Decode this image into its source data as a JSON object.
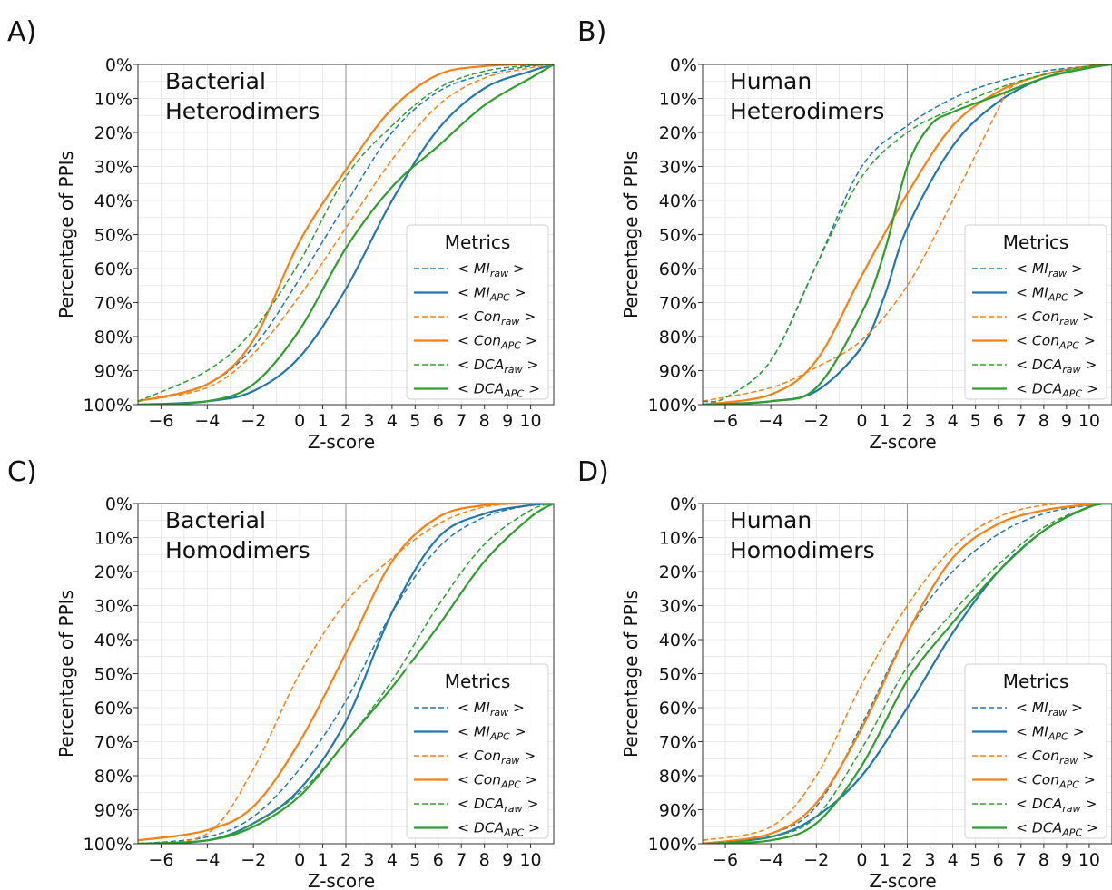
{
  "colors": {
    "blue": "#1f77b4",
    "orange": "#ff7f0e",
    "green": "#2ca02c"
  },
  "legend": {
    "title": "Metrics",
    "entries": [
      {
        "base": "MI",
        "sub": "raw",
        "color": "blue",
        "style": "dashed"
      },
      {
        "base": "MI",
        "sub": "APC",
        "color": "blue",
        "style": "solid"
      },
      {
        "base": "Con",
        "sub": "raw",
        "color": "orange",
        "style": "dashed"
      },
      {
        "base": "Con",
        "sub": "APC",
        "color": "orange",
        "style": "solid"
      },
      {
        "base": "DCA",
        "sub": "raw",
        "color": "green",
        "style": "dashed"
      },
      {
        "base": "DCA",
        "sub": "APC",
        "color": "green",
        "style": "solid"
      }
    ]
  },
  "chart_data": [
    {
      "type": "line",
      "panel": "A)",
      "title_lines": [
        "Bacterial",
        "Heterodimers"
      ],
      "xlabel": "Z-score",
      "ylabel": "Percentage of PPIs",
      "xlim": [
        -7,
        11
      ],
      "ylim": [
        0,
        100
      ],
      "y_inverted": true,
      "x_ticks": [
        -6,
        -4,
        -2,
        0,
        1,
        2,
        3,
        4,
        5,
        6,
        7,
        8,
        9,
        10
      ],
      "y_ticks": [
        "0%",
        "10%",
        "20%",
        "30%",
        "40%",
        "50%",
        "60%",
        "70%",
        "80%",
        "90%",
        "100%"
      ],
      "reference_line_x": 2,
      "grid": true,
      "legend_position": "lower right",
      "series": [
        {
          "name": "<MI_raw>",
          "color": "blue",
          "style": "dashed",
          "x": [
            -7,
            -4,
            -2,
            0,
            2,
            4,
            6,
            8,
            10,
            11
          ],
          "y": [
            99,
            94,
            83,
            63,
            41,
            20,
            8,
            3,
            0.5,
            0
          ]
        },
        {
          "name": "<MI_APC>",
          "color": "blue",
          "style": "solid",
          "x": [
            -7,
            -4,
            -2,
            0,
            2,
            4,
            6,
            8,
            10,
            11
          ],
          "y": [
            100,
            99,
            96,
            86,
            66,
            40,
            19,
            7,
            2,
            0
          ]
        },
        {
          "name": "<Con_raw>",
          "color": "orange",
          "style": "dashed",
          "x": [
            -7,
            -4,
            -2,
            0,
            2,
            4,
            6,
            8,
            10,
            11
          ],
          "y": [
            99,
            95,
            85,
            68,
            48,
            28,
            12,
            4,
            1,
            0
          ]
        },
        {
          "name": "<Con_APC>",
          "color": "orange",
          "style": "solid",
          "x": [
            -7,
            -4,
            -2,
            0,
            2,
            4,
            6,
            8,
            10,
            11
          ],
          "y": [
            99,
            94,
            81,
            52,
            31,
            13,
            3,
            0.5,
            0,
            0
          ]
        },
        {
          "name": "<DCA_raw>",
          "color": "green",
          "style": "dashed",
          "x": [
            -7,
            -4,
            -2,
            0,
            2,
            4,
            6,
            8,
            10,
            11
          ],
          "y": [
            99,
            90,
            78,
            58,
            33,
            18,
            7,
            2,
            0.3,
            0
          ]
        },
        {
          "name": "<DCA_APC>",
          "color": "green",
          "style": "solid",
          "x": [
            -7,
            -4,
            -2,
            0,
            2,
            4,
            6,
            8,
            10,
            11
          ],
          "y": [
            100,
            99,
            94,
            78,
            54,
            36,
            24,
            12,
            4,
            0
          ]
        }
      ]
    },
    {
      "type": "line",
      "panel": "B)",
      "title_lines": [
        "Human",
        "Heterodimers"
      ],
      "xlabel": "Z-score",
      "ylabel": "Percentage of PPIs",
      "xlim": [
        -7,
        11
      ],
      "ylim": [
        0,
        100
      ],
      "y_inverted": true,
      "x_ticks": [
        -6,
        -4,
        -2,
        0,
        1,
        2,
        3,
        4,
        5,
        6,
        7,
        8,
        9,
        10
      ],
      "y_ticks": [
        "0%",
        "10%",
        "20%",
        "30%",
        "40%",
        "50%",
        "60%",
        "70%",
        "80%",
        "90%",
        "100%"
      ],
      "reference_line_x": 2,
      "grid": true,
      "legend_position": "lower right",
      "series": [
        {
          "name": "<MI_raw>",
          "color": "blue",
          "style": "dashed",
          "x": [
            -7,
            -6,
            -4,
            -2,
            0,
            2,
            4,
            6,
            8,
            10,
            11
          ],
          "y": [
            99,
            98,
            87,
            59,
            30,
            18,
            10,
            5,
            2,
            0.5,
            0
          ]
        },
        {
          "name": "<MI_APC>",
          "color": "blue",
          "style": "solid",
          "x": [
            -7,
            -4,
            -2,
            0,
            1,
            2,
            4,
            6,
            8,
            10,
            11
          ],
          "y": [
            100,
            99,
            96,
            83,
            68,
            48,
            24,
            11,
            4,
            1,
            0
          ]
        },
        {
          "name": "<Con_raw>",
          "color": "orange",
          "style": "dashed",
          "x": [
            -7,
            -4,
            -2,
            0,
            2,
            4,
            6,
            6.5,
            8,
            10,
            11
          ],
          "y": [
            99,
            95,
            89,
            81,
            65,
            40,
            13,
            7,
            3,
            0.5,
            0
          ]
        },
        {
          "name": "<Con_APC>",
          "color": "orange",
          "style": "solid",
          "x": [
            -7,
            -4,
            -2,
            0,
            2,
            4,
            6,
            8,
            10,
            11
          ],
          "y": [
            100,
            97,
            87,
            62,
            38,
            18,
            8,
            3,
            0.5,
            0
          ]
        },
        {
          "name": "<DCA_raw>",
          "color": "green",
          "style": "dashed",
          "x": [
            -7,
            -6,
            -4,
            -2,
            0,
            2,
            4,
            6,
            8,
            10,
            11
          ],
          "y": [
            99,
            98,
            87,
            59,
            33,
            20,
            13,
            7,
            3,
            0.5,
            0
          ]
        },
        {
          "name": "<DCA_APC>",
          "color": "green",
          "style": "solid",
          "x": [
            -7,
            -4,
            -2,
            0,
            1,
            2,
            3,
            4,
            6,
            8,
            10,
            11
          ],
          "y": [
            100,
            99,
            95,
            73,
            55,
            30,
            18,
            14,
            9,
            4,
            1,
            0
          ]
        }
      ]
    },
    {
      "type": "line",
      "panel": "C)",
      "title_lines": [
        "Bacterial",
        "Homodimers"
      ],
      "xlabel": "Z-score",
      "ylabel": "Percentage of PPIs",
      "xlim": [
        -7,
        11
      ],
      "ylim": [
        0,
        100
      ],
      "y_inverted": true,
      "x_ticks": [
        -6,
        -4,
        -2,
        0,
        1,
        2,
        3,
        4,
        5,
        6,
        7,
        8,
        9,
        10
      ],
      "y_ticks": [
        "0%",
        "10%",
        "20%",
        "30%",
        "40%",
        "50%",
        "60%",
        "70%",
        "80%",
        "90%",
        "100%"
      ],
      "reference_line_x": 2,
      "grid": true,
      "legend_position": "lower right",
      "series": [
        {
          "name": "<MI_raw>",
          "color": "blue",
          "style": "dashed",
          "x": [
            -7,
            -4,
            -2,
            0,
            2,
            4,
            6,
            8,
            10,
            11
          ],
          "y": [
            100,
            98,
            92,
            78,
            58,
            32,
            13,
            4,
            0.5,
            0
          ]
        },
        {
          "name": "<MI_APC>",
          "color": "blue",
          "style": "solid",
          "x": [
            -7,
            -4,
            -2,
            0,
            2,
            4,
            6,
            8,
            10,
            11
          ],
          "y": [
            100,
            99,
            94,
            84,
            64,
            32,
            10,
            3,
            0.5,
            0
          ]
        },
        {
          "name": "<Con_raw>",
          "color": "orange",
          "style": "dashed",
          "x": [
            -7,
            -4,
            -2,
            0,
            2,
            4,
            6,
            8,
            10,
            11
          ],
          "y": [
            100,
            97,
            78,
            50,
            29,
            16,
            6,
            1,
            0,
            0
          ]
        },
        {
          "name": "<Con_APC>",
          "color": "orange",
          "style": "solid",
          "x": [
            -7,
            -4,
            -2,
            0,
            2,
            4,
            6,
            8,
            10,
            11
          ],
          "y": [
            99,
            96,
            89,
            70,
            44,
            17,
            4,
            0.5,
            0,
            0
          ]
        },
        {
          "name": "<DCA_raw>",
          "color": "green",
          "style": "dashed",
          "x": [
            -7,
            -4,
            -2,
            0,
            2,
            4,
            6,
            8,
            10,
            11
          ],
          "y": [
            100,
            99,
            94,
            85,
            70,
            52,
            30,
            12,
            2,
            0
          ]
        },
        {
          "name": "<DCA_APC>",
          "color": "green",
          "style": "solid",
          "x": [
            -7,
            -4,
            -2,
            0,
            2,
            4,
            6,
            8,
            10,
            11
          ],
          "y": [
            100,
            99,
            95,
            86,
            70,
            54,
            36,
            17,
            4,
            0
          ]
        }
      ]
    },
    {
      "type": "line",
      "panel": "D)",
      "title_lines": [
        "Human",
        "Homodimers"
      ],
      "xlabel": "Z-score",
      "ylabel": "Percentage of PPIs",
      "xlim": [
        -7,
        11
      ],
      "ylim": [
        0,
        100
      ],
      "y_inverted": true,
      "x_ticks": [
        -6,
        -4,
        -2,
        0,
        1,
        2,
        3,
        4,
        5,
        6,
        7,
        8,
        9,
        10
      ],
      "y_ticks": [
        "0%",
        "10%",
        "20%",
        "30%",
        "40%",
        "50%",
        "60%",
        "70%",
        "80%",
        "90%",
        "100%"
      ],
      "reference_line_x": 2,
      "grid": true,
      "legend_position": "lower right",
      "series": [
        {
          "name": "<MI_raw>",
          "color": "blue",
          "style": "dashed",
          "x": [
            -7,
            -4,
            -2,
            0,
            2,
            4,
            6,
            8,
            10,
            11
          ],
          "y": [
            100,
            97,
            89,
            65,
            38,
            20,
            9,
            3,
            0.5,
            0
          ]
        },
        {
          "name": "<MI_APC>",
          "color": "blue",
          "style": "solid",
          "x": [
            -7,
            -4,
            -2,
            0,
            2,
            4,
            6,
            8,
            10,
            11
          ],
          "y": [
            100,
            98,
            92,
            80,
            60,
            38,
            20,
            8,
            1,
            0
          ]
        },
        {
          "name": "<Con_raw>",
          "color": "orange",
          "style": "dashed",
          "x": [
            -7,
            -4,
            -2,
            0,
            2,
            4,
            6,
            8,
            10,
            11
          ],
          "y": [
            99,
            95,
            80,
            53,
            30,
            13,
            4,
            0.5,
            0,
            0
          ]
        },
        {
          "name": "<Con_APC>",
          "color": "orange",
          "style": "solid",
          "x": [
            -7,
            -4,
            -2,
            0,
            2,
            4,
            6,
            8,
            10,
            11
          ],
          "y": [
            100,
            97,
            88,
            66,
            38,
            16,
            6,
            2,
            0.3,
            0
          ]
        },
        {
          "name": "<DCA_raw>",
          "color": "green",
          "style": "dashed",
          "x": [
            -7,
            -4,
            -2,
            0,
            2,
            4,
            6,
            8,
            10,
            11
          ],
          "y": [
            100,
            98,
            92,
            72,
            48,
            32,
            18,
            7,
            1,
            0
          ]
        },
        {
          "name": "<DCA_APC>",
          "color": "green",
          "style": "solid",
          "x": [
            -7,
            -4,
            -2,
            0,
            2,
            4,
            6,
            8,
            10,
            11
          ],
          "y": [
            100,
            99,
            94,
            77,
            52,
            35,
            20,
            8,
            1,
            0
          ]
        }
      ]
    }
  ]
}
